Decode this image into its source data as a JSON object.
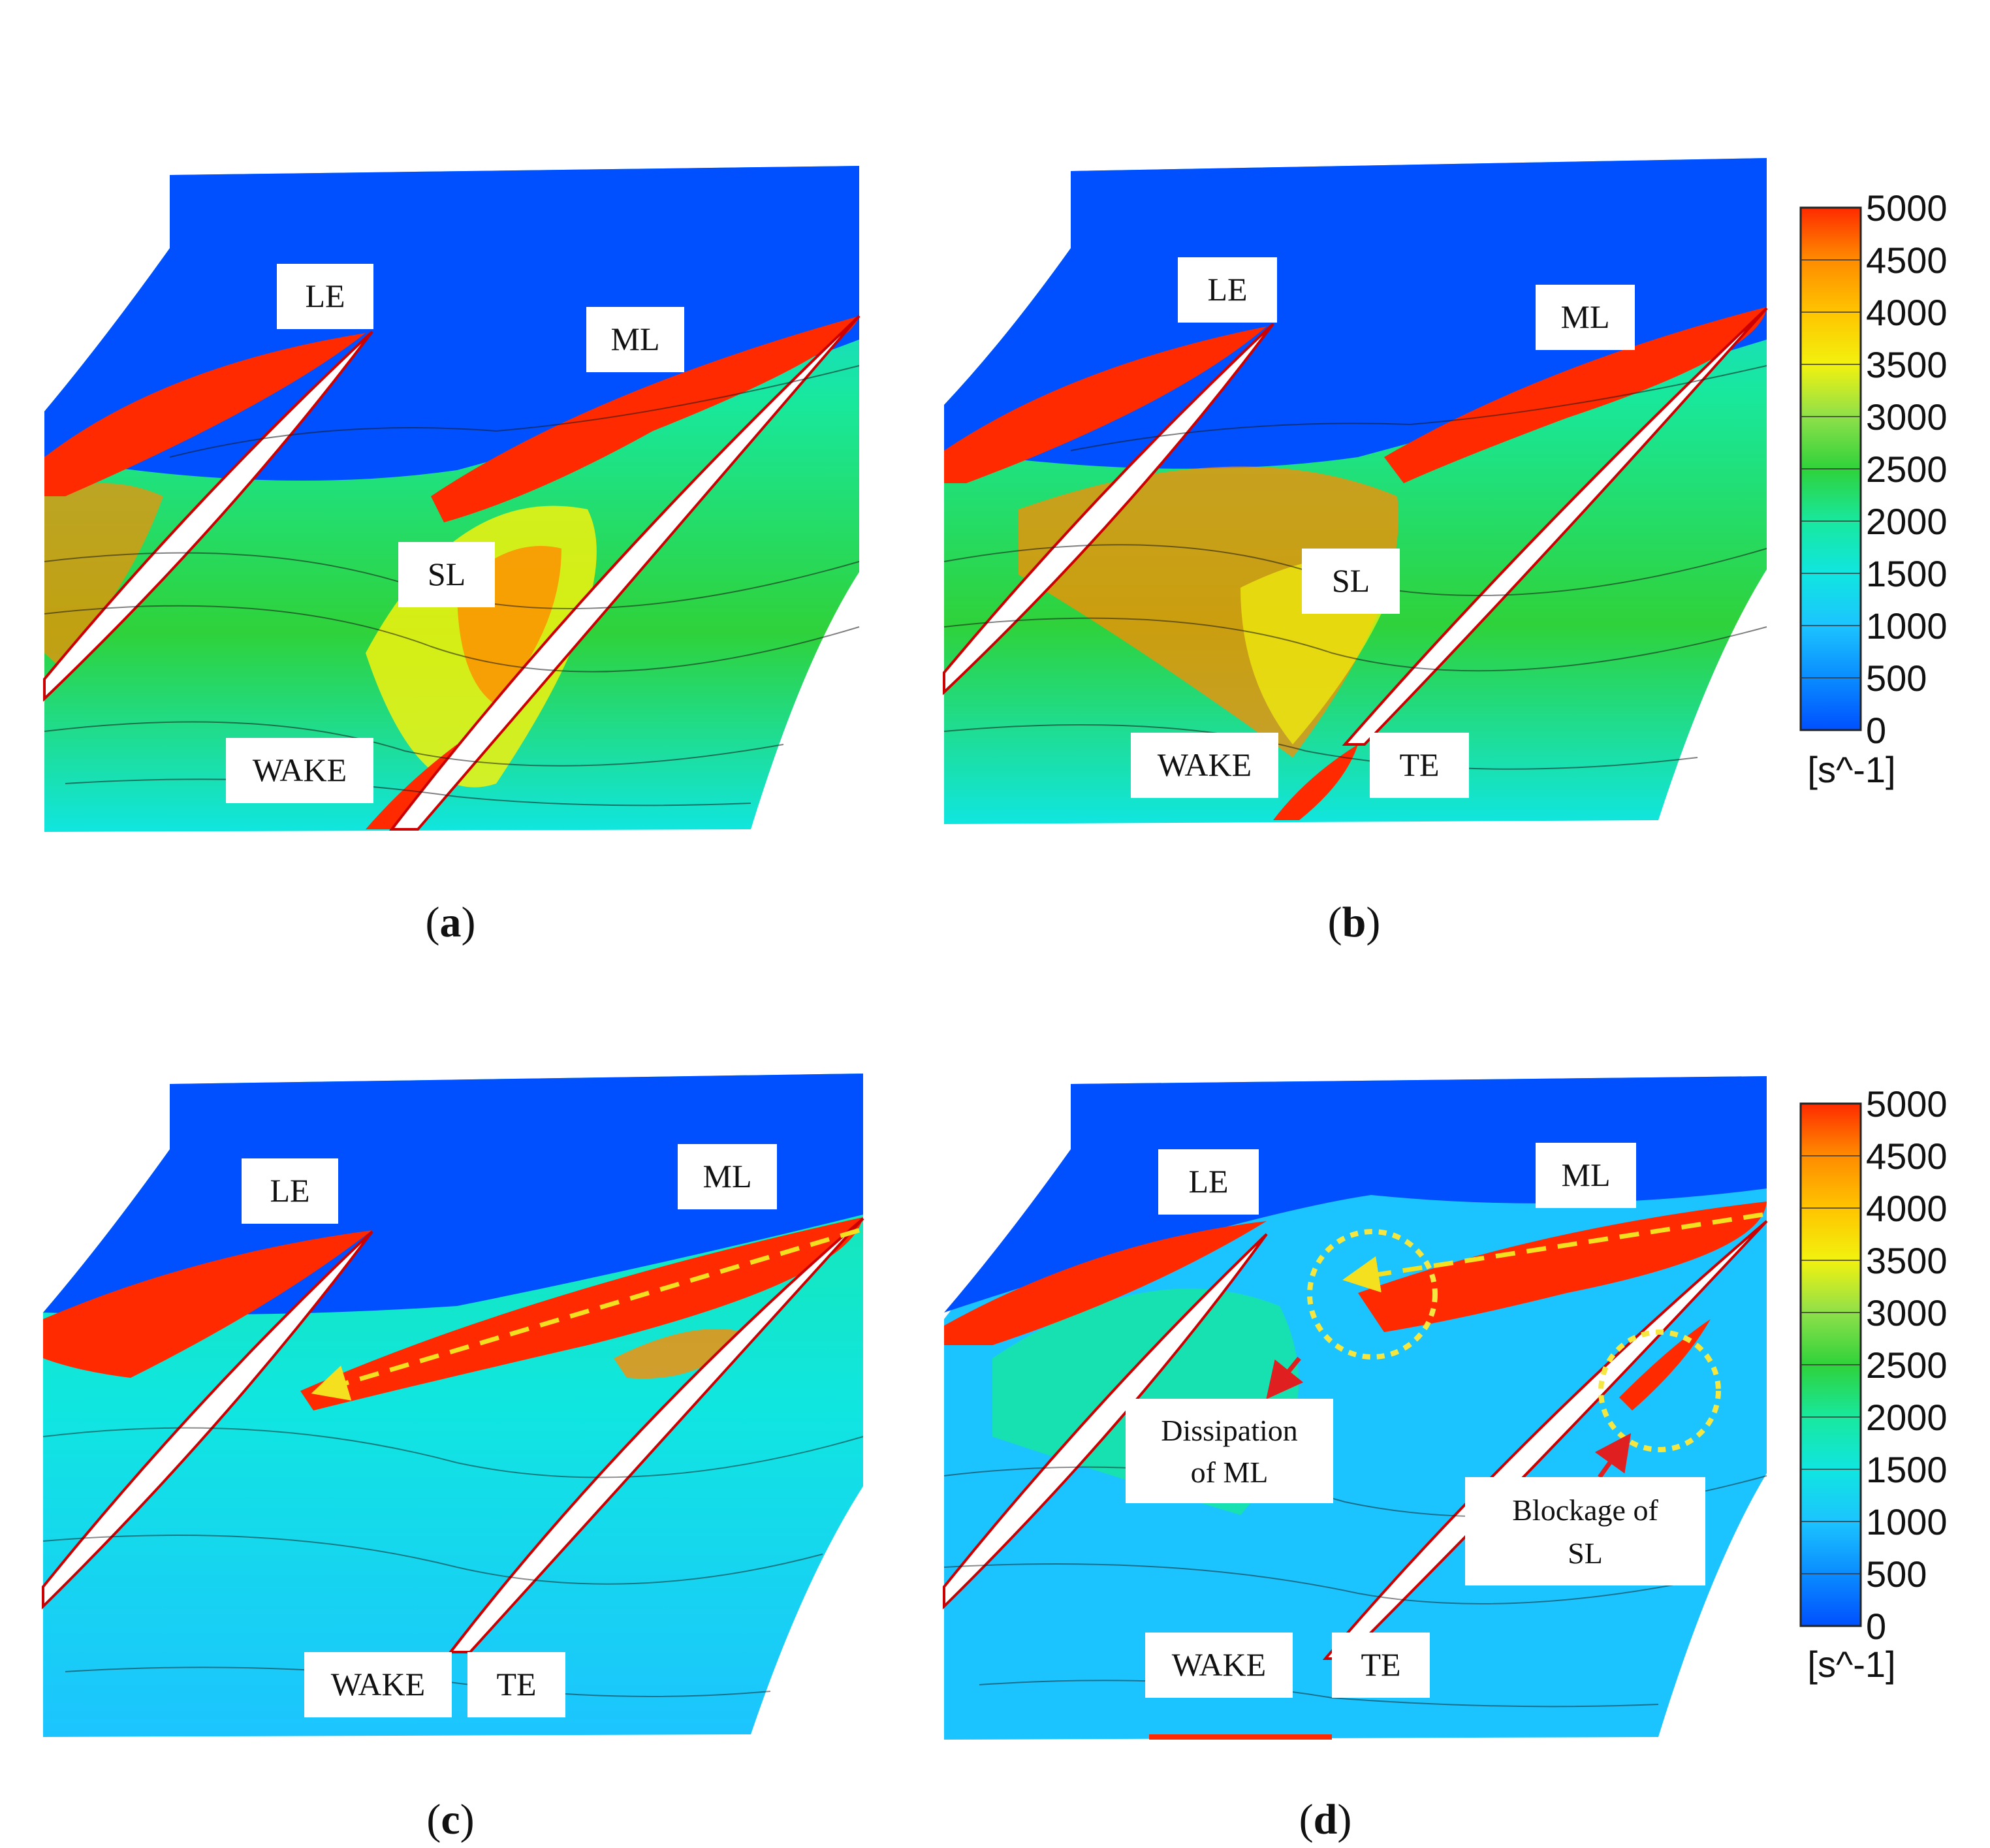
{
  "panels": {
    "a": {
      "caption_open": "(",
      "caption_letter": "a",
      "caption_close": ")",
      "labels": {
        "le": "LE",
        "ml": "ML",
        "sl": "SL",
        "wake": "WAKE"
      }
    },
    "b": {
      "caption_open": "(",
      "caption_letter": "b",
      "caption_close": ")",
      "labels": {
        "le": "LE",
        "ml": "ML",
        "sl": "SL",
        "wake": "WAKE",
        "te": "TE"
      }
    },
    "c": {
      "caption_open": "(",
      "caption_letter": "c",
      "caption_close": ")",
      "labels": {
        "le": "LE",
        "ml": "ML",
        "wake": "WAKE",
        "te": "TE"
      }
    },
    "d": {
      "caption_open": "(",
      "caption_letter": "d",
      "caption_close": ")",
      "labels": {
        "le": "LE",
        "ml": "ML",
        "wake": "WAKE",
        "te": "TE",
        "dissipation_1": "Dissipation",
        "dissipation_2": "of ML",
        "blockage_1": "Blockage of",
        "blockage_2": "SL"
      }
    }
  },
  "colorbars": {
    "top": {
      "ticks": [
        "5000",
        "4500",
        "4000",
        "3500",
        "3000",
        "2500",
        "2000",
        "1500",
        "1000",
        "500",
        "0"
      ],
      "unit": "[s^-1]"
    },
    "bottom": {
      "ticks": [
        "5000",
        "4500",
        "4000",
        "3500",
        "3000",
        "2500",
        "2000",
        "1500",
        "1000",
        "500",
        "0"
      ],
      "unit": "[s^-1]"
    }
  },
  "colors": {
    "colormap": [
      "#0050ff",
      "#0a8cff",
      "#1cc4ff",
      "#10e6e0",
      "#18e89e",
      "#2fd23a",
      "#8fe04a",
      "#f2f20e",
      "#ffc400",
      "#ff8c00",
      "#ff2a00"
    ],
    "annotation_arrow": "#e02020",
    "dashed_arrow": "#f5e020",
    "circle": "#f5e640"
  }
}
